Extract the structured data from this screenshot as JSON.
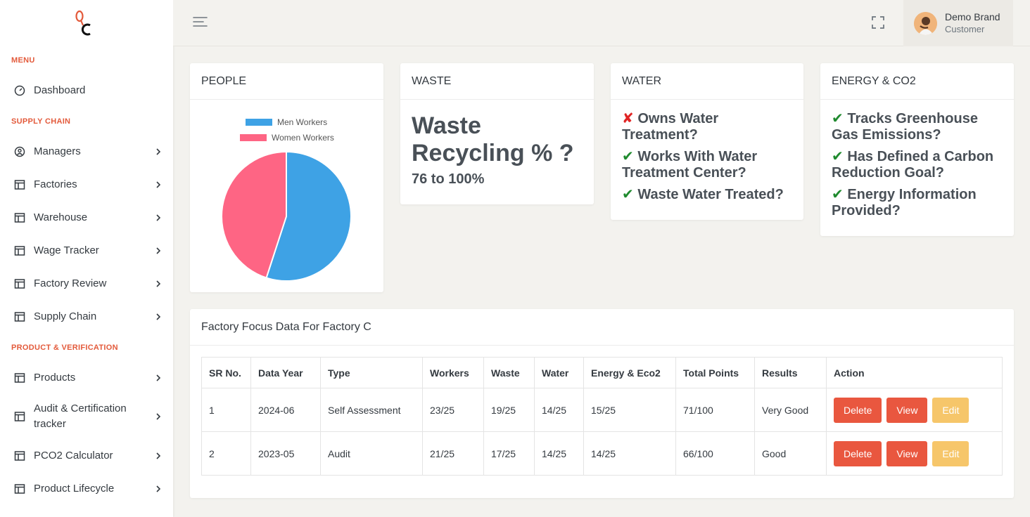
{
  "sidebar": {
    "sections": {
      "menu": "MENU",
      "supply_chain": "SUPPLY CHAIN",
      "product_verification": "PRODUCT & VERIFICATION"
    },
    "items": {
      "dashboard": "Dashboard",
      "managers": "Managers",
      "factories": "Factories",
      "warehouse": "Warehouse",
      "wage_tracker": "Wage Tracker",
      "factory_review": "Factory Review",
      "supply_chain": "Supply Chain",
      "products": "Products",
      "audit": "Audit & Certification tracker",
      "pco2": "PCO2 Calculator",
      "lifecycle": "Product Lifecycle"
    }
  },
  "topbar": {
    "user_name": "Demo Brand",
    "user_role": "Customer"
  },
  "cards": {
    "people": {
      "title": "PEOPLE",
      "legend_men": "Men Workers",
      "legend_women": "Women Workers"
    },
    "waste": {
      "title": "WASTE",
      "heading": "Waste Recycling % ?",
      "value": "76 to 100%"
    },
    "water": {
      "title": "WATER",
      "items": [
        {
          "mark": "✘",
          "text": "Owns Water Treatment?"
        },
        {
          "mark": "✔",
          "text": "Works With Water Treatment Center?"
        },
        {
          "mark": "✔",
          "text": "Waste Water Treated?"
        }
      ]
    },
    "energy": {
      "title": "ENERGY & CO2",
      "items": [
        {
          "mark": "✔",
          "text": "Tracks Greenhouse Gas Emissions?"
        },
        {
          "mark": "✔",
          "text": "Has Defined a Carbon Reduction Goal?"
        },
        {
          "mark": "✔",
          "text": "Energy Information Provided?"
        }
      ]
    }
  },
  "table": {
    "title": "Factory Focus Data For Factory C",
    "headers": [
      "SR No.",
      "Data Year",
      "Type",
      "Workers",
      "Waste",
      "Water",
      "Energy & Eco2",
      "Total Points",
      "Results",
      "Action"
    ],
    "rows": [
      [
        "1",
        "2024-06",
        "Self Assessment",
        "23/25",
        "19/25",
        "14/25",
        "15/25",
        "71/100",
        "Very Good"
      ],
      [
        "2",
        "2023-05",
        "Audit",
        "21/25",
        "17/25",
        "14/25",
        "14/25",
        "66/100",
        "Good"
      ]
    ],
    "actions": {
      "delete": "Delete",
      "view": "View",
      "edit": "Edit"
    }
  },
  "colors": {
    "accent": "#e9573f",
    "men": "#3ea2e5",
    "women": "#fe6584",
    "check": "#1f8a2e",
    "cross": "#e02424",
    "edit": "#f6c05a"
  },
  "chart_data": {
    "type": "pie",
    "categories": [
      "Men Workers",
      "Women Workers"
    ],
    "values": [
      55,
      45
    ],
    "legend": "top"
  }
}
